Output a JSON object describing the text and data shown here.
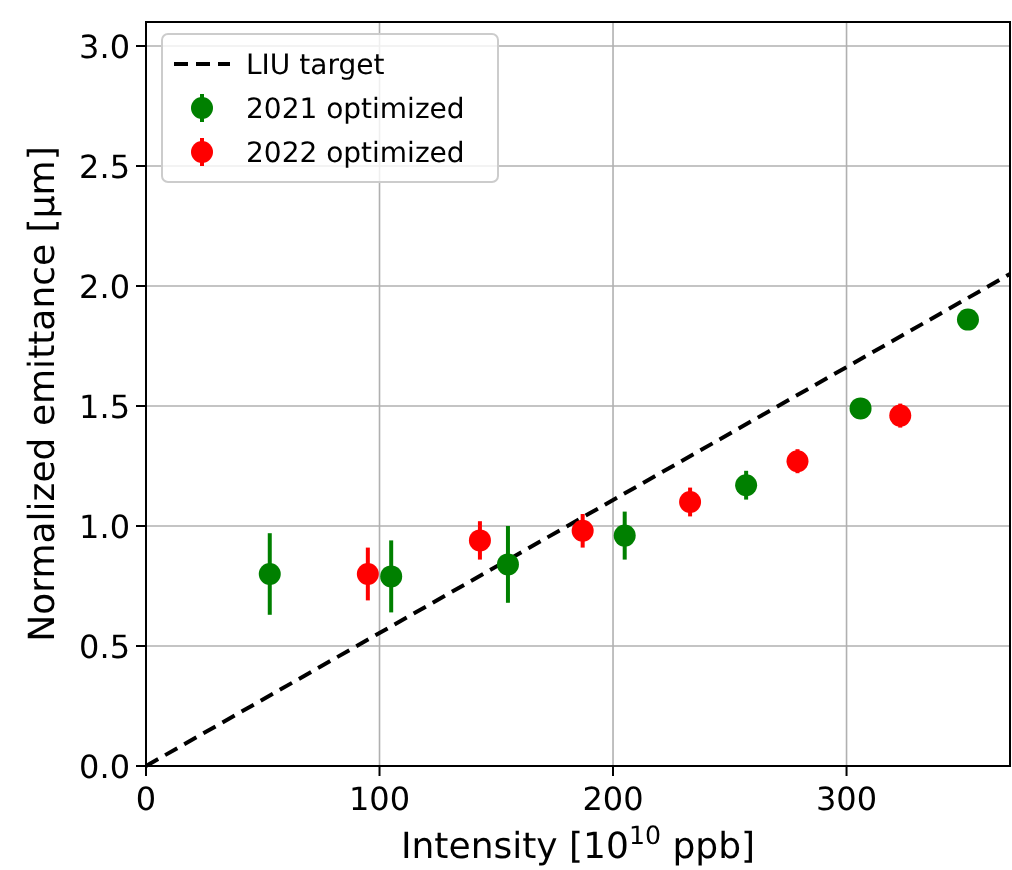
{
  "chart_data": {
    "type": "scatter",
    "xlabel": "Intensity [10$^{10}$ ppb]",
    "ylabel": "Normalized emittance [μm]",
    "xlim": [
      0,
      370
    ],
    "ylim": [
      0,
      3.1
    ],
    "xticks": [
      0,
      100,
      200,
      300
    ],
    "yticks": [
      {
        "value": 0,
        "label": "0.0"
      },
      0.5,
      {
        "value": 1,
        "label": "1.0"
      },
      1.5,
      {
        "value": 2,
        "label": "2.0"
      },
      2.5,
      {
        "value": 3,
        "label": "3.0"
      }
    ],
    "grid": true,
    "legend": "top left",
    "marker": "circle",
    "series": [
      {
        "name": "LIU target",
        "type": "line",
        "color": "#000000",
        "line_style": "dashed",
        "marker": "none",
        "x": [
          0,
          370
        ],
        "values": [
          0,
          2.05
        ]
      },
      {
        "name": "2021 optimized",
        "color": "#008000",
        "x": [
          53,
          105,
          155,
          205,
          257,
          306,
          352
        ],
        "values": [
          0.8,
          0.79,
          0.84,
          0.96,
          1.17,
          1.49,
          1.86
        ],
        "errors": [
          0.17,
          0.15,
          0.16,
          0.1,
          0.06,
          0.03,
          0.03
        ]
      },
      {
        "name": "2022 optimized",
        "color": "#ff0000",
        "x": [
          95,
          143,
          187,
          233,
          279,
          323
        ],
        "values": [
          0.8,
          0.94,
          0.98,
          1.1,
          1.27,
          1.46
        ],
        "errors": [
          0.11,
          0.08,
          0.07,
          0.06,
          0.05,
          0.05
        ]
      }
    ]
  }
}
